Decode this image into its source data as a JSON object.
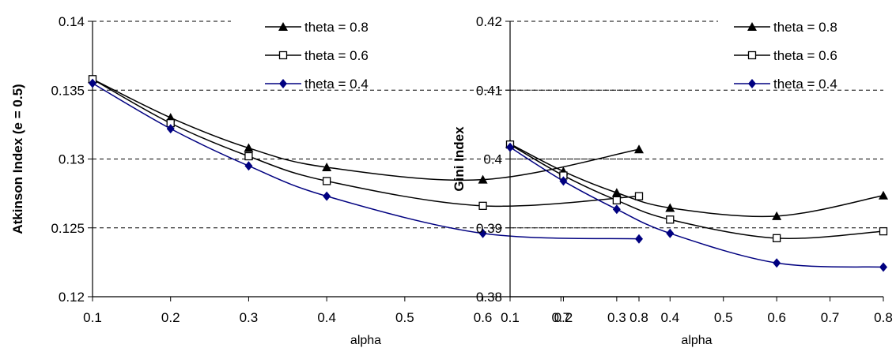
{
  "chart_data": [
    {
      "type": "line",
      "title": "",
      "xlabel": "alpha",
      "ylabel": "Atkinson Index (e = 0.5)",
      "xlim": [
        0.1,
        0.8
      ],
      "ylim": [
        0.12,
        0.14
      ],
      "x_ticks": [
        "0.1",
        "0.2",
        "0.3",
        "0.4",
        "0.5",
        "0.6",
        "0.7",
        "0.8"
      ],
      "y_ticks": [
        "0.12",
        "0.125",
        "0.13",
        "0.135",
        "0.14"
      ],
      "grid": "horizontal dashed",
      "legend_position": "top-right",
      "x": [
        0.1,
        0.2,
        0.3,
        0.4,
        0.6,
        0.8
      ],
      "series": [
        {
          "name": "theta = 0.8",
          "marker": "triangle",
          "color": "#000000",
          "values": [
            0.1358,
            0.133,
            0.1308,
            0.1294,
            0.1285,
            0.1307
          ]
        },
        {
          "name": "theta = 0.6",
          "marker": "square-open",
          "color": "#000000",
          "values": [
            0.1358,
            0.1326,
            0.1302,
            0.1284,
            0.1266,
            0.1273
          ]
        },
        {
          "name": "theta = 0.4",
          "marker": "diamond",
          "color": "#000080",
          "values": [
            0.1355,
            0.1322,
            0.1295,
            0.1273,
            0.1246,
            0.1242
          ]
        }
      ]
    },
    {
      "type": "line",
      "title": "",
      "xlabel": "alpha",
      "ylabel": "Gini Index",
      "xlim": [
        0.1,
        0.8
      ],
      "ylim": [
        0.38,
        0.42
      ],
      "x_ticks": [
        "0.1",
        "0.2",
        "0.3",
        "0.4",
        "0.5",
        "0.6",
        "0.7",
        "0.8"
      ],
      "y_ticks": [
        "0.38",
        "0.39",
        "0.4",
        "0.41",
        "0.42"
      ],
      "grid": "horizontal dashed",
      "legend_position": "top-right",
      "x": [
        0.1,
        0.2,
        0.3,
        0.4,
        0.6,
        0.8
      ],
      "series": [
        {
          "name": "theta = 0.8",
          "marker": "triangle",
          "color": "#000000",
          "values": [
            0.4022,
            0.3982,
            0.3951,
            0.3929,
            0.3917,
            0.3947
          ]
        },
        {
          "name": "theta = 0.6",
          "marker": "square-open",
          "color": "#000000",
          "values": [
            0.4021,
            0.3976,
            0.394,
            0.3912,
            0.3885,
            0.3895
          ]
        },
        {
          "name": "theta = 0.4",
          "marker": "diamond",
          "color": "#000080",
          "values": [
            0.4017,
            0.3968,
            0.3927,
            0.3892,
            0.3849,
            0.3843
          ]
        }
      ]
    }
  ]
}
